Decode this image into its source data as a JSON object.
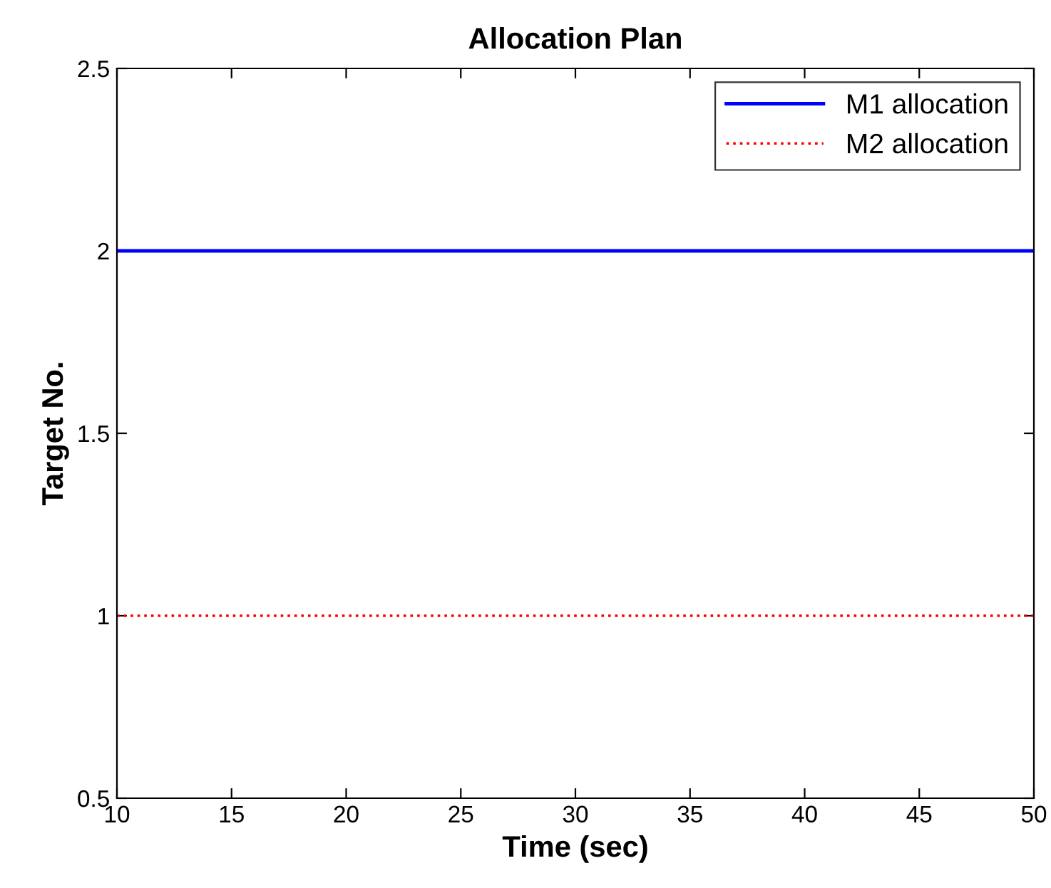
{
  "chart_data": {
    "type": "line",
    "title": "Allocation Plan",
    "xlabel": "Time (sec)",
    "ylabel": "Target No.",
    "x": [
      10,
      50
    ],
    "series": [
      {
        "name": "M1 allocation",
        "color": "#0000ff",
        "values": [
          2,
          2
        ],
        "line_style": "solid"
      },
      {
        "name": "M2 allocation",
        "color": "#ff0000",
        "values": [
          1,
          1
        ],
        "line_style": "dotted"
      }
    ],
    "xlim": [
      10,
      50
    ],
    "xticks": [
      10,
      15,
      20,
      25,
      30,
      35,
      40,
      45,
      50
    ],
    "ylim": [
      0.5,
      2.5
    ],
    "yticks": [
      0.5,
      1,
      1.5,
      2,
      2.5
    ],
    "grid": false,
    "legend": "top right",
    "marker": "none"
  }
}
